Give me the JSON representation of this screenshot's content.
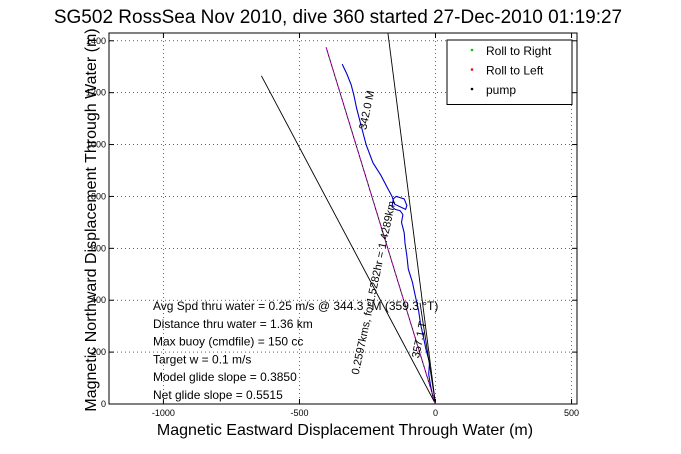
{
  "chart_data": {
    "type": "line",
    "title": "SG502 RossSea Nov 2010, dive 360 started 27-Dec-2010 01:19:27",
    "xlabel": "Magnetic Eastward Displacement Through Water (m)",
    "ylabel": "Magnetic Northward Displacement Through Water (m)",
    "xlim": [
      -1200,
      520
    ],
    "ylim": [
      0,
      1430
    ],
    "xticks": [
      -1000,
      -500,
      0,
      500
    ],
    "yticks": [
      0,
      200,
      400,
      600,
      800,
      1000,
      1200,
      1400
    ],
    "grid": true,
    "legend_position": "top-right",
    "legend": [
      {
        "label": "Roll to Right",
        "color": "#00cc00",
        "marker": "dot"
      },
      {
        "label": "Roll to Left",
        "color": "#ff0000",
        "marker": "dot"
      },
      {
        "label": "pump",
        "color": "#000000",
        "marker": "dot"
      }
    ],
    "series": [
      {
        "kind": "track",
        "color": "#0000cc",
        "points": [
          [
            0,
            0
          ],
          [
            -10,
            30
          ],
          [
            -18,
            70
          ],
          [
            -25,
            115
          ],
          [
            -22,
            160
          ],
          [
            -35,
            210
          ],
          [
            -45,
            260
          ],
          [
            -55,
            310
          ],
          [
            -62,
            360
          ],
          [
            -75,
            420
          ],
          [
            -85,
            470
          ],
          [
            -100,
            520
          ],
          [
            -105,
            570
          ],
          [
            -112,
            620
          ],
          [
            -115,
            660
          ],
          [
            -125,
            700
          ],
          [
            -120,
            730
          ],
          [
            -130,
            745
          ],
          [
            -148,
            750
          ],
          [
            -160,
            760
          ],
          [
            -155,
            790
          ],
          [
            -145,
            800
          ],
          [
            -115,
            790
          ],
          [
            -105,
            765
          ],
          [
            -110,
            750
          ],
          [
            -150,
            770
          ],
          [
            -160,
            800
          ],
          [
            -175,
            830
          ],
          [
            -200,
            880
          ],
          [
            -230,
            930
          ],
          [
            -255,
            1000
          ],
          [
            -270,
            1060
          ],
          [
            -280,
            1100
          ],
          [
            -290,
            1140
          ],
          [
            -300,
            1190
          ],
          [
            -310,
            1230
          ],
          [
            -325,
            1270
          ],
          [
            -343,
            1310
          ]
        ]
      },
      {
        "kind": "reference-line",
        "color": "#000000",
        "points": [
          [
            0,
            0
          ],
          [
            -640,
            1265
          ]
        ]
      },
      {
        "kind": "reference-line",
        "color": "#000000",
        "points": [
          [
            0,
            0
          ],
          [
            -175,
            1430
          ]
        ]
      },
      {
        "kind": "reference-line",
        "color": "#000000",
        "points": [
          [
            0,
            0
          ],
          [
            -57,
            390
          ]
        ]
      },
      {
        "kind": "reference-line",
        "color": "#000000",
        "points": [
          [
            0,
            0
          ],
          [
            -402,
            1375
          ]
        ]
      },
      {
        "kind": "reference-line",
        "color": "#cc00cc",
        "dashed": true,
        "points": [
          [
            0,
            0
          ],
          [
            -402,
            1375
          ]
        ]
      }
    ],
    "rotated_labels": [
      {
        "text": "342.0 M",
        "x": -240,
        "y": 1130
      },
      {
        "text": "0.2597kms, for1.5282hr = 1.4289km",
        "x": -215,
        "y": 445
      },
      {
        "text": "357.1 T",
        "x": -47,
        "y": 245
      }
    ],
    "annotations": [
      "Avg Spd thru water =  0.25 m/s @ 344.3 °M (359.3 °T)",
      "Distance thru water =  1.36 km",
      "Max buoy (cmdfile) = 150 cc",
      "Target w = 0.1 m/s",
      "Model glide slope = 0.3850",
      "Net glide slope = 0.5515"
    ]
  }
}
